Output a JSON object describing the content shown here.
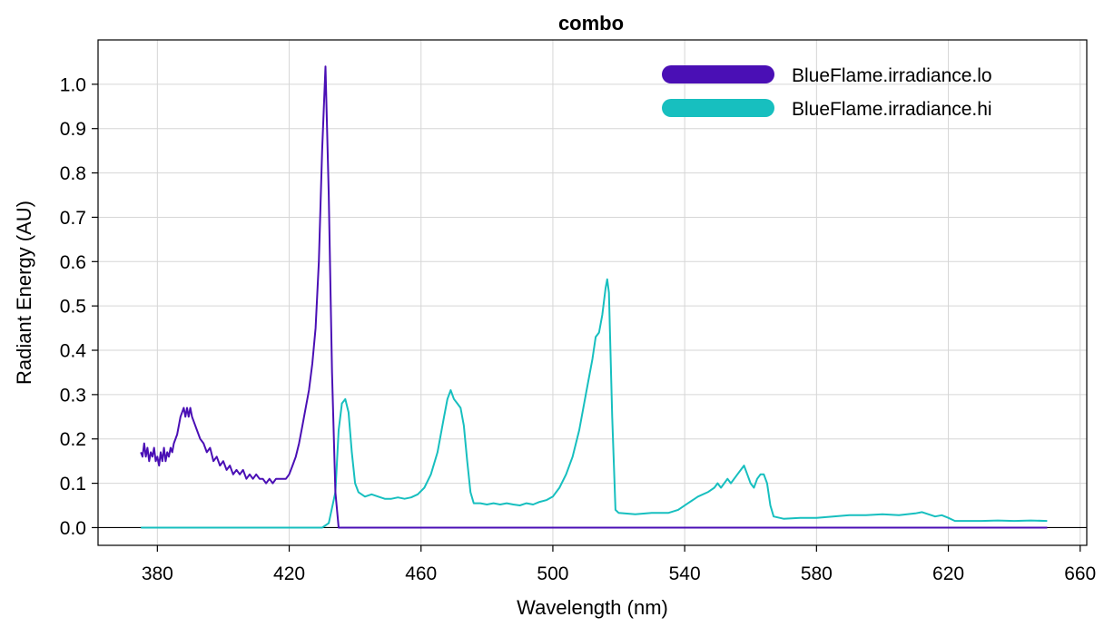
{
  "chart_data": {
    "type": "line",
    "title": "combo",
    "xlabel": "Wavelength (nm)",
    "ylabel": "Radiant Energy (AU)",
    "xlim": [
      362,
      662
    ],
    "ylim": [
      -0.04,
      1.1
    ],
    "xticks": [
      380,
      420,
      460,
      500,
      540,
      580,
      620,
      660
    ],
    "yticks": [
      0.0,
      0.1,
      0.2,
      0.3,
      0.4,
      0.5,
      0.6,
      0.7,
      0.8,
      0.9,
      1.0
    ],
    "xtick_labels": [
      "380",
      "420",
      "460",
      "500",
      "540",
      "580",
      "620",
      "660"
    ],
    "ytick_labels": [
      "0.0",
      "0.1",
      "0.2",
      "0.3",
      "0.4",
      "0.5",
      "0.6",
      "0.7",
      "0.8",
      "0.9",
      "1.0"
    ],
    "grid": true,
    "legend_position": "top-right",
    "series": [
      {
        "name": "BlueFlame.irradiance.lo",
        "color": "#4a0fb5",
        "points": [
          [
            375,
            0.17
          ],
          [
            375.5,
            0.16
          ],
          [
            376,
            0.19
          ],
          [
            376.5,
            0.16
          ],
          [
            377,
            0.18
          ],
          [
            377.5,
            0.15
          ],
          [
            378,
            0.17
          ],
          [
            378.5,
            0.16
          ],
          [
            379,
            0.18
          ],
          [
            379.5,
            0.15
          ],
          [
            380,
            0.16
          ],
          [
            380.5,
            0.14
          ],
          [
            381,
            0.17
          ],
          [
            381.5,
            0.15
          ],
          [
            382,
            0.18
          ],
          [
            382.5,
            0.15
          ],
          [
            383,
            0.17
          ],
          [
            383.5,
            0.16
          ],
          [
            384,
            0.18
          ],
          [
            384.5,
            0.17
          ],
          [
            385,
            0.19
          ],
          [
            386,
            0.21
          ],
          [
            387,
            0.25
          ],
          [
            388,
            0.27
          ],
          [
            388.5,
            0.25
          ],
          [
            389,
            0.27
          ],
          [
            389.5,
            0.25
          ],
          [
            390,
            0.27
          ],
          [
            390.5,
            0.25
          ],
          [
            391,
            0.24
          ],
          [
            392,
            0.22
          ],
          [
            393,
            0.2
          ],
          [
            394,
            0.19
          ],
          [
            395,
            0.17
          ],
          [
            396,
            0.18
          ],
          [
            397,
            0.15
          ],
          [
            398,
            0.16
          ],
          [
            399,
            0.14
          ],
          [
            400,
            0.15
          ],
          [
            401,
            0.13
          ],
          [
            402,
            0.14
          ],
          [
            403,
            0.12
          ],
          [
            404,
            0.13
          ],
          [
            405,
            0.12
          ],
          [
            406,
            0.13
          ],
          [
            407,
            0.11
          ],
          [
            408,
            0.12
          ],
          [
            409,
            0.11
          ],
          [
            410,
            0.12
          ],
          [
            411,
            0.11
          ],
          [
            412,
            0.11
          ],
          [
            413,
            0.1
          ],
          [
            414,
            0.11
          ],
          [
            415,
            0.1
          ],
          [
            416,
            0.11
          ],
          [
            417,
            0.11
          ],
          [
            418,
            0.11
          ],
          [
            419,
            0.11
          ],
          [
            420,
            0.12
          ],
          [
            421,
            0.14
          ],
          [
            422,
            0.16
          ],
          [
            423,
            0.19
          ],
          [
            424,
            0.23
          ],
          [
            425,
            0.27
          ],
          [
            426,
            0.31
          ],
          [
            427,
            0.37
          ],
          [
            428,
            0.45
          ],
          [
            429,
            0.6
          ],
          [
            430,
            0.85
          ],
          [
            431,
            1.04
          ],
          [
            432,
            0.75
          ],
          [
            433,
            0.35
          ],
          [
            434,
            0.08
          ],
          [
            435,
            0.0
          ],
          [
            436,
            0.0
          ],
          [
            450,
            0.0
          ],
          [
            500,
            0.0
          ],
          [
            550,
            0.0
          ],
          [
            600,
            0.0
          ],
          [
            650,
            0.0
          ]
        ]
      },
      {
        "name": "BlueFlame.irradiance.hi",
        "color": "#17bfbf",
        "points": [
          [
            375,
            0.0
          ],
          [
            400,
            0.0
          ],
          [
            420,
            0.0
          ],
          [
            430,
            0.0
          ],
          [
            432,
            0.01
          ],
          [
            434,
            0.08
          ],
          [
            435,
            0.22
          ],
          [
            436,
            0.28
          ],
          [
            437,
            0.29
          ],
          [
            438,
            0.26
          ],
          [
            439,
            0.17
          ],
          [
            440,
            0.1
          ],
          [
            441,
            0.08
          ],
          [
            443,
            0.07
          ],
          [
            445,
            0.075
          ],
          [
            447,
            0.07
          ],
          [
            449,
            0.065
          ],
          [
            451,
            0.065
          ],
          [
            453,
            0.068
          ],
          [
            455,
            0.065
          ],
          [
            457,
            0.068
          ],
          [
            459,
            0.075
          ],
          [
            461,
            0.09
          ],
          [
            463,
            0.12
          ],
          [
            465,
            0.17
          ],
          [
            467,
            0.25
          ],
          [
            468,
            0.29
          ],
          [
            469,
            0.31
          ],
          [
            470,
            0.29
          ],
          [
            471,
            0.28
          ],
          [
            472,
            0.27
          ],
          [
            473,
            0.23
          ],
          [
            474,
            0.15
          ],
          [
            475,
            0.08
          ],
          [
            476,
            0.055
          ],
          [
            478,
            0.055
          ],
          [
            480,
            0.052
          ],
          [
            482,
            0.055
          ],
          [
            484,
            0.052
          ],
          [
            486,
            0.055
          ],
          [
            488,
            0.052
          ],
          [
            490,
            0.05
          ],
          [
            492,
            0.055
          ],
          [
            494,
            0.052
          ],
          [
            496,
            0.058
          ],
          [
            498,
            0.062
          ],
          [
            500,
            0.07
          ],
          [
            502,
            0.09
          ],
          [
            504,
            0.12
          ],
          [
            506,
            0.16
          ],
          [
            508,
            0.22
          ],
          [
            510,
            0.3
          ],
          [
            512,
            0.38
          ],
          [
            513,
            0.43
          ],
          [
            514,
            0.44
          ],
          [
            515,
            0.48
          ],
          [
            516,
            0.54
          ],
          [
            516.5,
            0.56
          ],
          [
            517,
            0.53
          ],
          [
            518,
            0.25
          ],
          [
            519,
            0.04
          ],
          [
            520,
            0.033
          ],
          [
            525,
            0.03
          ],
          [
            530,
            0.033
          ],
          [
            535,
            0.033
          ],
          [
            538,
            0.04
          ],
          [
            541,
            0.055
          ],
          [
            544,
            0.07
          ],
          [
            547,
            0.08
          ],
          [
            549,
            0.09
          ],
          [
            550,
            0.1
          ],
          [
            551,
            0.09
          ],
          [
            552,
            0.1
          ],
          [
            553,
            0.11
          ],
          [
            554,
            0.1
          ],
          [
            555,
            0.11
          ],
          [
            556,
            0.12
          ],
          [
            557,
            0.13
          ],
          [
            558,
            0.14
          ],
          [
            559,
            0.12
          ],
          [
            560,
            0.1
          ],
          [
            561,
            0.09
          ],
          [
            562,
            0.11
          ],
          [
            563,
            0.12
          ],
          [
            564,
            0.12
          ],
          [
            565,
            0.1
          ],
          [
            566,
            0.05
          ],
          [
            567,
            0.025
          ],
          [
            570,
            0.02
          ],
          [
            575,
            0.022
          ],
          [
            580,
            0.022
          ],
          [
            585,
            0.025
          ],
          [
            590,
            0.028
          ],
          [
            595,
            0.028
          ],
          [
            600,
            0.03
          ],
          [
            605,
            0.028
          ],
          [
            610,
            0.032
          ],
          [
            612,
            0.035
          ],
          [
            614,
            0.03
          ],
          [
            616,
            0.025
          ],
          [
            618,
            0.028
          ],
          [
            620,
            0.022
          ],
          [
            622,
            0.015
          ],
          [
            625,
            0.015
          ],
          [
            630,
            0.015
          ],
          [
            635,
            0.016
          ],
          [
            640,
            0.015
          ],
          [
            645,
            0.016
          ],
          [
            650,
            0.015
          ]
        ]
      }
    ]
  }
}
